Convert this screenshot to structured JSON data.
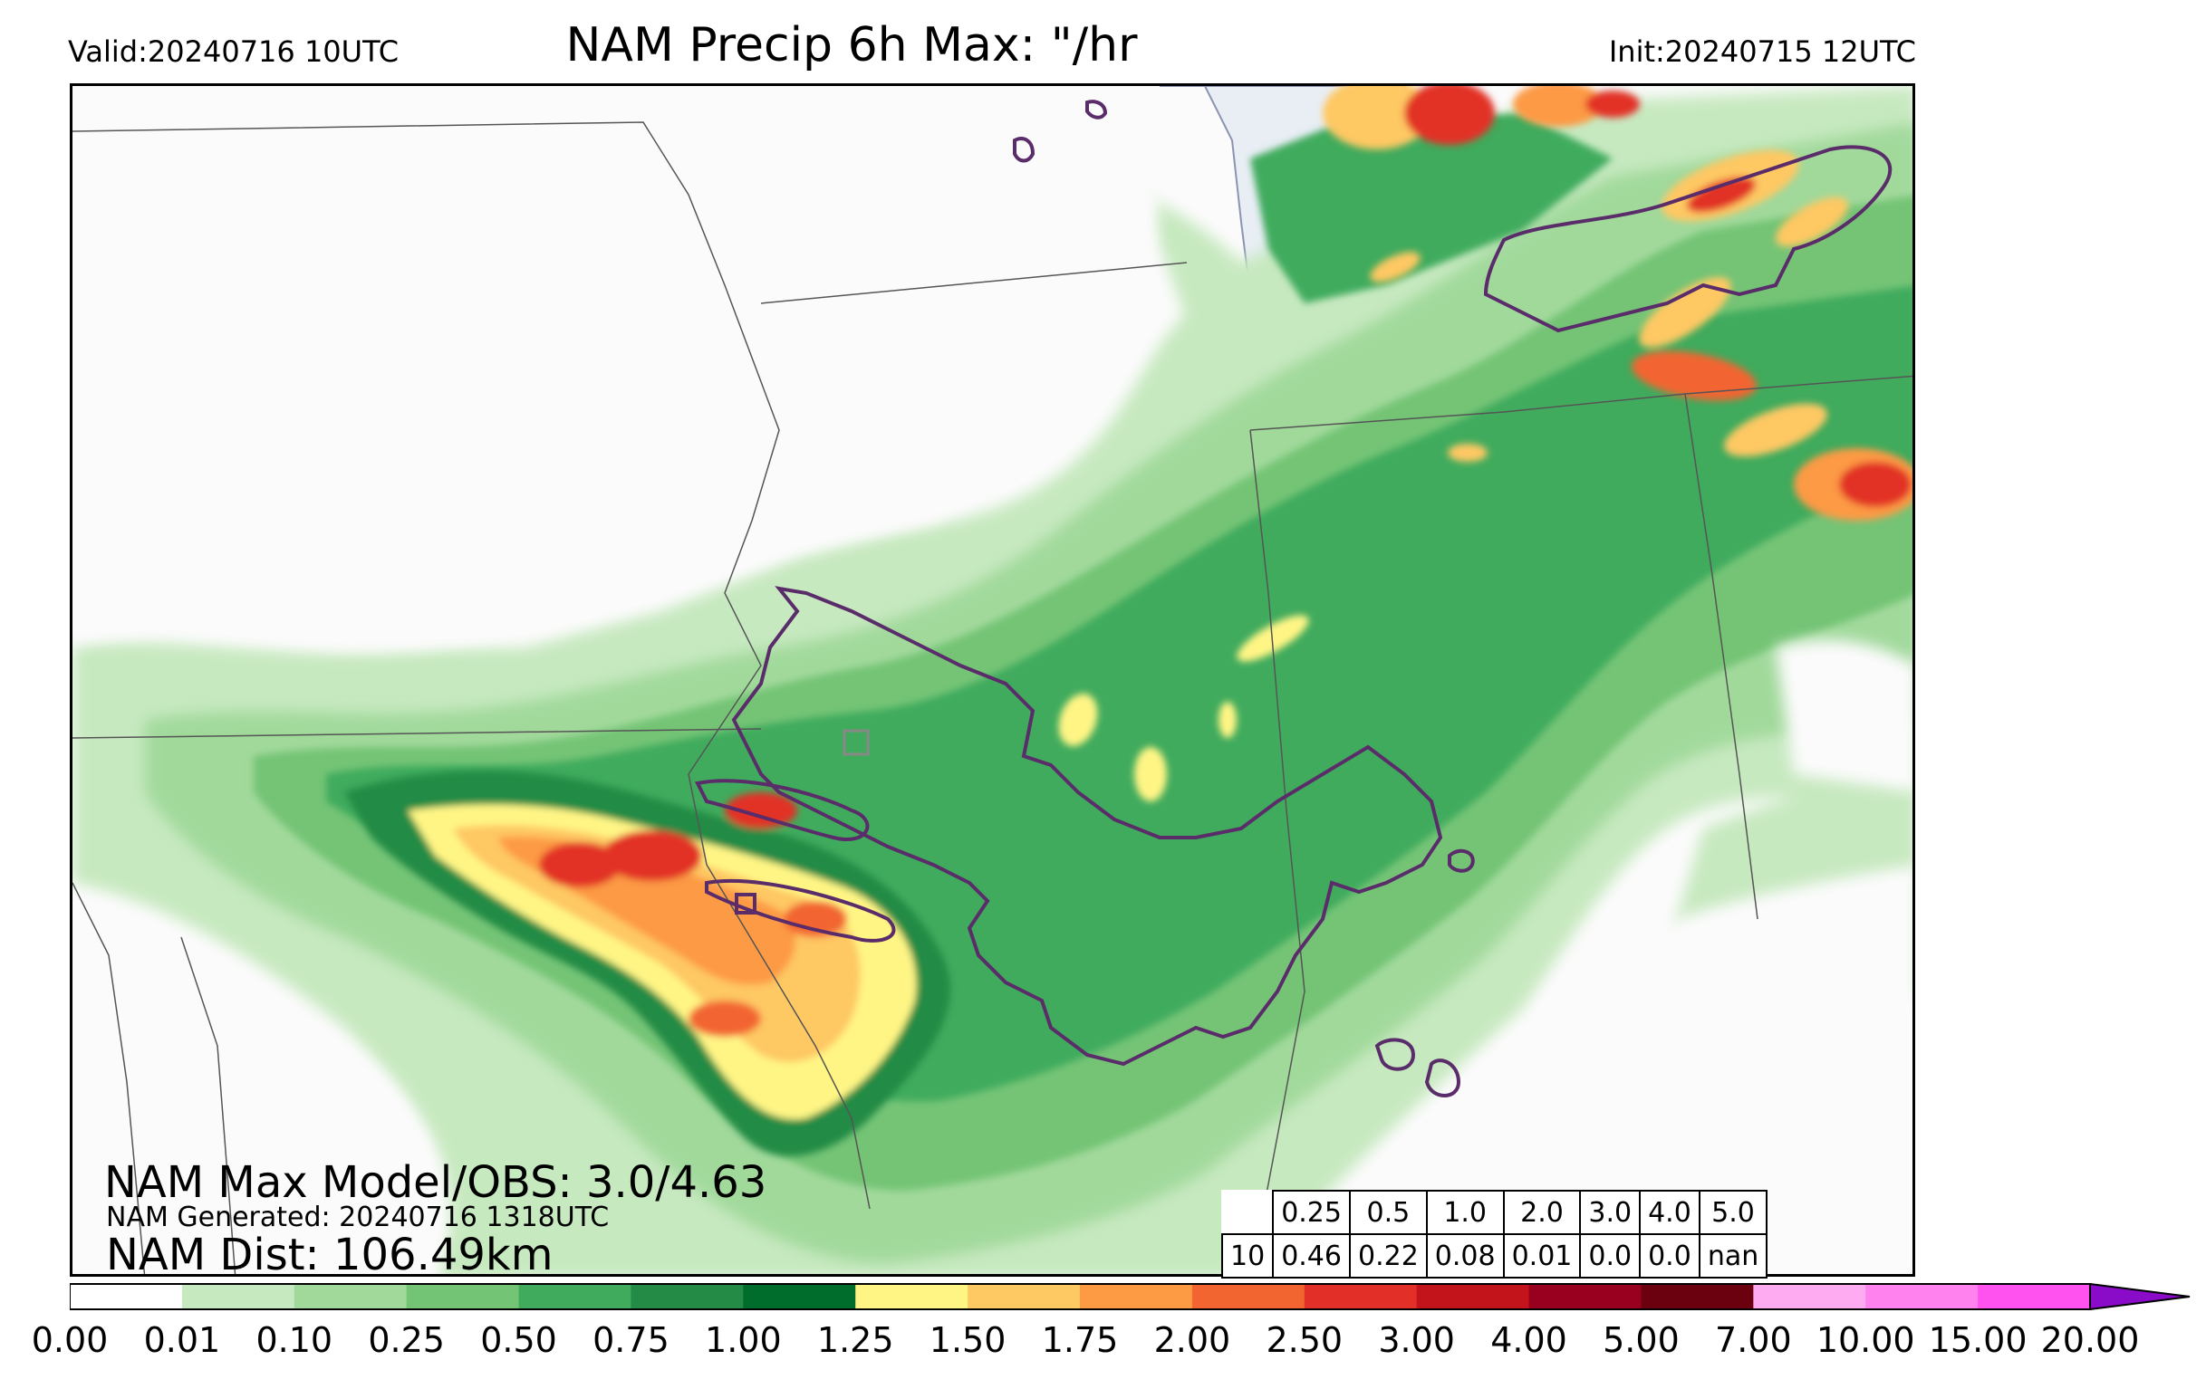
{
  "header": {
    "valid": "Valid:20240716 10UTC",
    "title": "NAM Precip 6h Max: \"/hr",
    "init": "Init:20240715 12UTC"
  },
  "annotations": {
    "max_model_obs": "NAM Max Model/OBS: 3.0/4.63",
    "generated": "NAM Generated: 20240716 1318UTC",
    "dist": "NAM Dist: 106.49km"
  },
  "stats_table": {
    "row_label": "10",
    "thresholds": [
      "0.25",
      "0.5",
      "1.0",
      "2.0",
      "3.0",
      "4.0",
      "5.0"
    ],
    "values": [
      "0.46",
      "0.22",
      "0.08",
      "0.01",
      "0.0",
      "0.0",
      "nan"
    ]
  },
  "colorbar": {
    "ticks": [
      "0.00",
      "0.01",
      "0.10",
      "0.25",
      "0.50",
      "0.75",
      "1.00",
      "1.25",
      "1.50",
      "1.75",
      "2.00",
      "2.50",
      "3.00",
      "4.00",
      "5.00",
      "7.00",
      "10.00",
      "15.00",
      "20.00"
    ],
    "colors": [
      "#ffffff",
      "#c7e9c0",
      "#a1d99b",
      "#74c476",
      "#41ab5d",
      "#238b45",
      "#006d2c",
      "#fff585",
      "#fec863",
      "#fd9a44",
      "#f26530",
      "#e23028",
      "#c3141c",
      "#990020",
      "#6b000e",
      "#ffabf1",
      "#ff82ef",
      "#ff52ee",
      "#e01ef0",
      "#b010e0",
      "#8a0cc8"
    ],
    "extend": "max"
  },
  "map": {
    "land_color": "#fbfbfb",
    "lake_color": "#eef2f8",
    "contour_color": "#5a2d6a",
    "state_line_color": "#555555"
  }
}
